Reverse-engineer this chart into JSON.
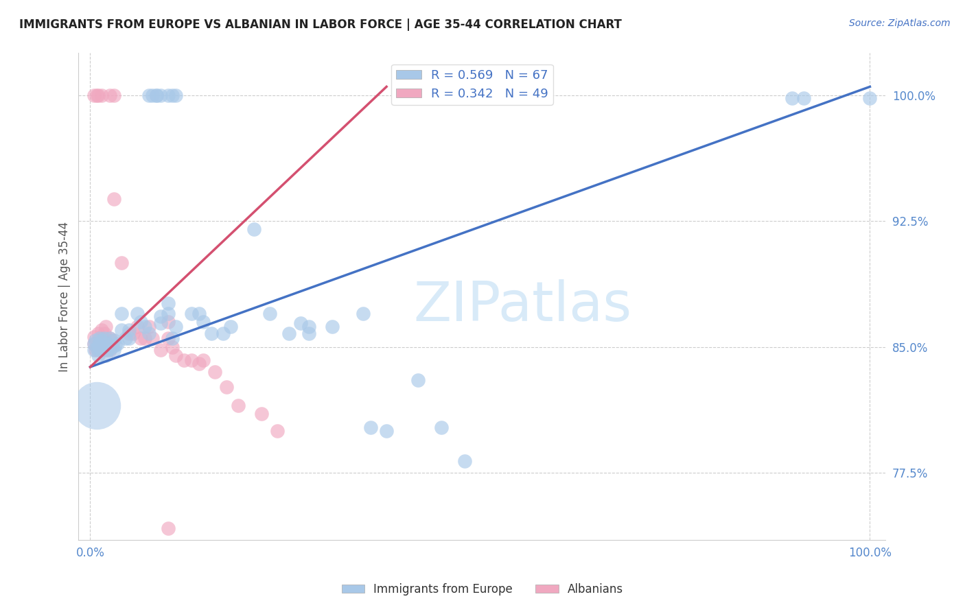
{
  "title": "IMMIGRANTS FROM EUROPE VS ALBANIAN IN LABOR FORCE | AGE 35-44 CORRELATION CHART",
  "source": "Source: ZipAtlas.com",
  "ylabel": "In Labor Force | Age 35-44",
  "blue_R": 0.569,
  "blue_N": 67,
  "pink_R": 0.342,
  "pink_N": 49,
  "blue_color": "#a8c8e8",
  "pink_color": "#f0a8c0",
  "blue_line_color": "#4472c4",
  "pink_line_color": "#d45070",
  "background_color": "#ffffff",
  "watermark_color": "#d8eaf8",
  "tick_color": "#5588cc",
  "ylabel_color": "#555555",
  "title_color": "#222222",
  "source_color": "#4472c4",
  "yticks": [
    0.775,
    0.85,
    0.925,
    1.0
  ],
  "ytick_labels": [
    "77.5%",
    "85.0%",
    "92.5%",
    "100.0%"
  ],
  "xtick_labels": [
    "0.0%",
    "100.0%"
  ],
  "xlim": [
    -0.015,
    1.02
  ],
  "ylim": [
    0.735,
    1.025
  ],
  "blue_line_x0": 0.0,
  "blue_line_y0": 0.838,
  "blue_line_x1": 1.0,
  "blue_line_y1": 1.005,
  "pink_line_x0": 0.0,
  "pink_line_y0": 0.838,
  "pink_line_x1": 0.38,
  "pink_line_y1": 1.005,
  "blue_pts_x": [
    0.005,
    0.005,
    0.007,
    0.008,
    0.01,
    0.01,
    0.012,
    0.012,
    0.015,
    0.015,
    0.018,
    0.02,
    0.02,
    0.022,
    0.022,
    0.025,
    0.025,
    0.028,
    0.03,
    0.03,
    0.032,
    0.035,
    0.04,
    0.04,
    0.045,
    0.05,
    0.05,
    0.06,
    0.065,
    0.07,
    0.075,
    0.09,
    0.09,
    0.1,
    0.1,
    0.105,
    0.11,
    0.13,
    0.14,
    0.145,
    0.155,
    0.17,
    0.18,
    0.21,
    0.23,
    0.255,
    0.27,
    0.28,
    0.28,
    0.31,
    0.35,
    0.36,
    0.38,
    0.42,
    0.45,
    0.48,
    0.9,
    0.915,
    1.0
  ],
  "blue_pts_y": [
    0.848,
    0.852,
    0.854,
    0.849,
    0.851,
    0.845,
    0.855,
    0.85,
    0.848,
    0.854,
    0.855,
    0.85,
    0.845,
    0.852,
    0.848,
    0.855,
    0.849,
    0.85,
    0.854,
    0.848,
    0.851,
    0.852,
    0.87,
    0.86,
    0.855,
    0.86,
    0.855,
    0.87,
    0.865,
    0.862,
    0.858,
    0.868,
    0.864,
    0.87,
    0.876,
    0.855,
    0.862,
    0.87,
    0.87,
    0.865,
    0.858,
    0.858,
    0.862,
    0.92,
    0.87,
    0.858,
    0.864,
    0.862,
    0.858,
    0.862,
    0.87,
    0.802,
    0.8,
    0.83,
    0.802,
    0.782,
    0.998,
    0.998,
    0.998
  ],
  "blue_pts_top_x": [
    0.075,
    0.08,
    0.085,
    0.085,
    0.09,
    0.1,
    0.105,
    0.11
  ],
  "blue_pts_top_y": [
    1.0,
    1.0,
    1.0,
    1.0,
    1.0,
    1.0,
    1.0,
    1.0
  ],
  "blue_large_x": [
    0.008
  ],
  "blue_large_y": [
    0.815
  ],
  "blue_large_s": 2500,
  "pink_pts_x": [
    0.005,
    0.005,
    0.007,
    0.008,
    0.01,
    0.01,
    0.012,
    0.015,
    0.015,
    0.018,
    0.018,
    0.02,
    0.02,
    0.022,
    0.025,
    0.025,
    0.028,
    0.03,
    0.04,
    0.05,
    0.055,
    0.06,
    0.065,
    0.07,
    0.075,
    0.08,
    0.09,
    0.1,
    0.1,
    0.105,
    0.11,
    0.12,
    0.13,
    0.14,
    0.145,
    0.16,
    0.175,
    0.19,
    0.22,
    0.24
  ],
  "pink_pts_y": [
    0.856,
    0.852,
    0.848,
    0.85,
    0.858,
    0.848,
    0.852,
    0.86,
    0.855,
    0.858,
    0.854,
    0.862,
    0.848,
    0.852,
    0.855,
    0.848,
    0.854,
    0.938,
    0.9,
    0.858,
    0.858,
    0.862,
    0.855,
    0.855,
    0.862,
    0.855,
    0.848,
    0.865,
    0.855,
    0.85,
    0.845,
    0.842,
    0.842,
    0.84,
    0.842,
    0.835,
    0.826,
    0.815,
    0.81,
    0.8
  ],
  "pink_pts_top_x": [
    0.005,
    0.008,
    0.01,
    0.015,
    0.025,
    0.03
  ],
  "pink_pts_top_y": [
    1.0,
    1.0,
    1.0,
    1.0,
    1.0,
    1.0
  ],
  "pink_low_x": [
    0.1
  ],
  "pink_low_y": [
    0.742
  ],
  "scatter_s": 220
}
